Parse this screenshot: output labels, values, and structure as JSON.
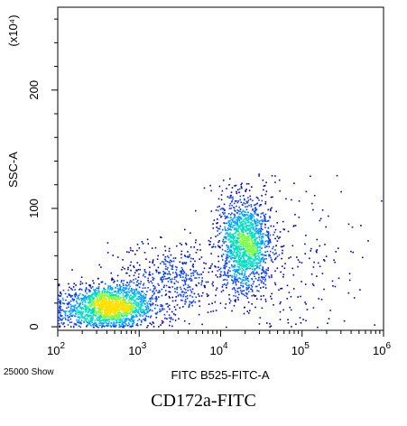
{
  "chart_data": {
    "type": "scatter",
    "style": "density-dot-plot",
    "xlabel": "FITC B525-FITC-A",
    "ylabel": "SSC-A",
    "y_multiplier_label": "(x10⁴)",
    "x_scale": "log",
    "xlim": [
      100,
      1000000
    ],
    "ylim": [
      -3,
      270
    ],
    "x_ticks": [
      {
        "value": 100,
        "base": "10",
        "exp": "2"
      },
      {
        "value": 1000,
        "base": "10",
        "exp": "3"
      },
      {
        "value": 10000,
        "base": "10",
        "exp": "4"
      },
      {
        "value": 100000,
        "base": "10",
        "exp": "5"
      },
      {
        "value": 1000000,
        "base": "10",
        "exp": "6"
      }
    ],
    "y_ticks": [
      0,
      100,
      200
    ],
    "event_count_label": "25000 Show",
    "caption": "CD172a-FITC",
    "density_colors": [
      "#0000b4",
      "#0a3cff",
      "#00a0ff",
      "#00e0c0",
      "#80ff40",
      "#ffe000"
    ],
    "populations": [
      {
        "name": "low",
        "x_log_center": 2.6,
        "y_center": 17,
        "x_log_sd": 0.28,
        "y_sd": 9,
        "count": 1800
      },
      {
        "name": "high",
        "x_log_center": 4.3,
        "y_center": 70,
        "x_log_sd": 0.16,
        "y_sd": 20,
        "count": 1500
      },
      {
        "name": "bridge",
        "x_log_center": 3.4,
        "y_center": 40,
        "x_log_sd": 0.35,
        "y_sd": 16,
        "count": 500
      },
      {
        "name": "sparse",
        "x_log_center": 4.7,
        "y_center": 60,
        "x_log_sd": 0.5,
        "y_sd": 35,
        "count": 250
      }
    ]
  }
}
